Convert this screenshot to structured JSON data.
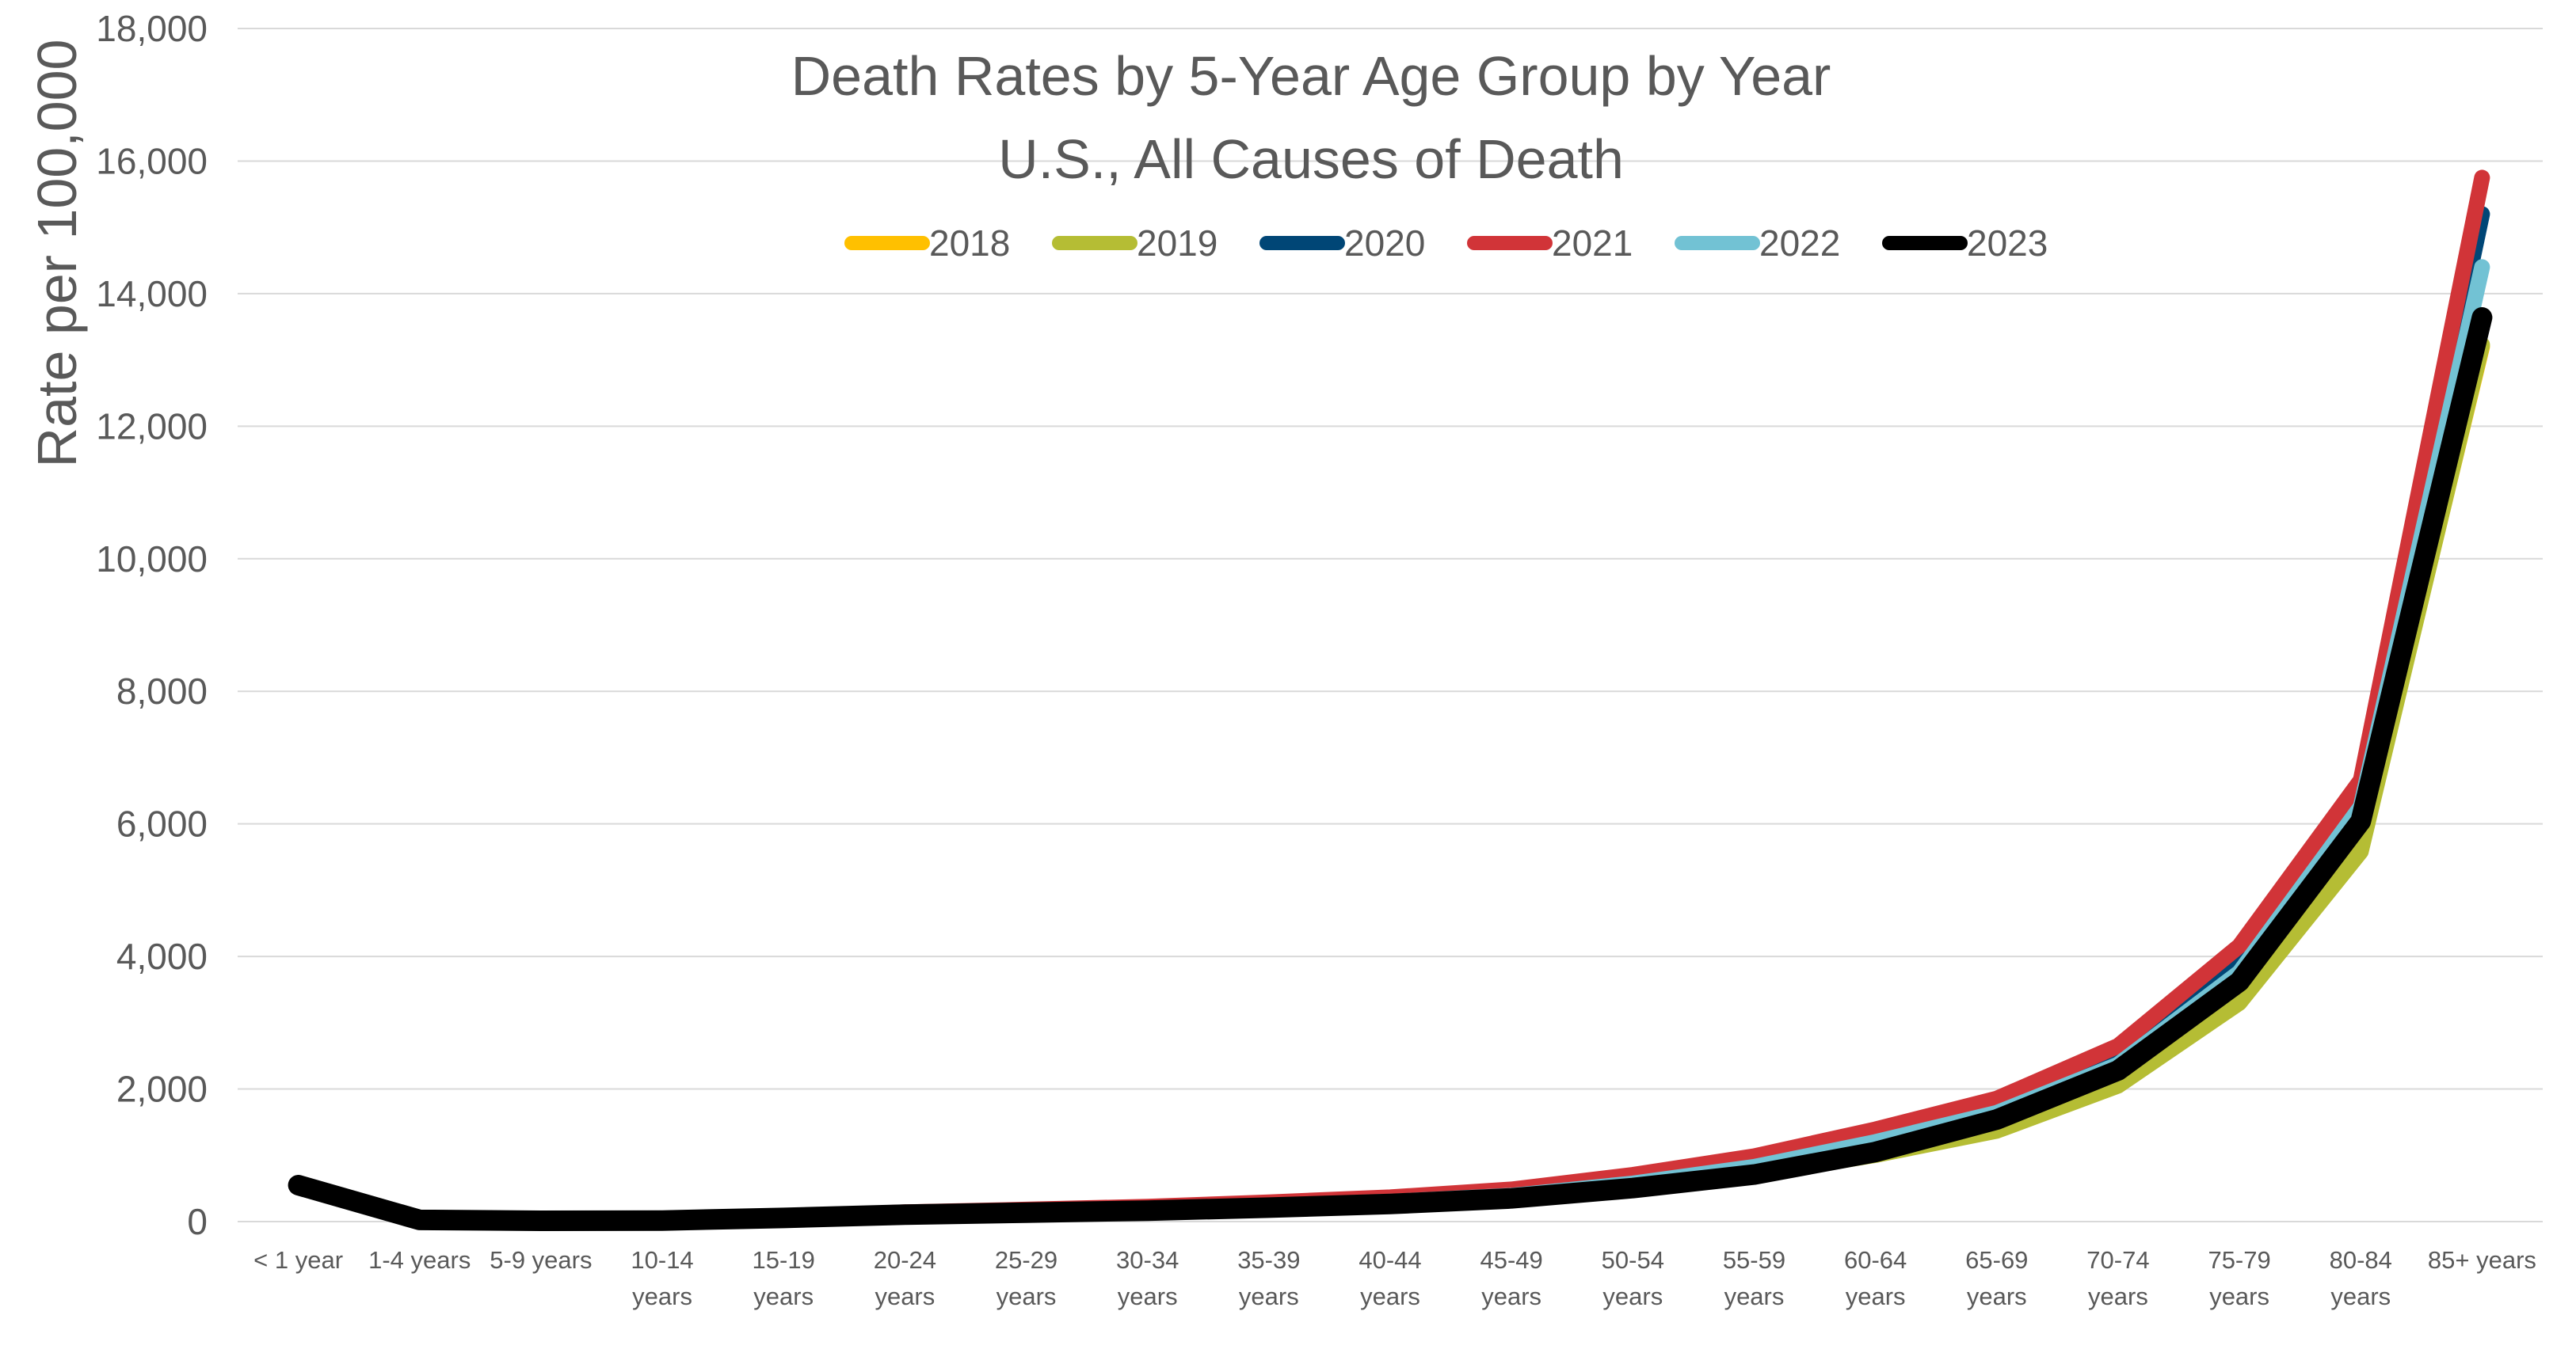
{
  "chart_data": {
    "type": "line",
    "title": "Death Rates by 5-Year Age Group by Year",
    "subtitle": "U.S., All Causes of Death",
    "xlabel": "",
    "ylabel": "Rate per 100,000",
    "ylim": [
      0,
      18000
    ],
    "y_ticks": [
      "0",
      "2,000",
      "4,000",
      "6,000",
      "8,000",
      "10,000",
      "12,000",
      "14,000",
      "16,000",
      "18,000"
    ],
    "grid": true,
    "legend_position": "top",
    "categories": [
      [
        "< 1 year"
      ],
      [
        "1-4 years"
      ],
      [
        "5-9 years"
      ],
      [
        "10-14",
        "years"
      ],
      [
        "15-19",
        "years"
      ],
      [
        "20-24",
        "years"
      ],
      [
        "25-29",
        "years"
      ],
      [
        "30-34",
        "years"
      ],
      [
        "35-39",
        "years"
      ],
      [
        "40-44",
        "years"
      ],
      [
        "45-49",
        "years"
      ],
      [
        "50-54",
        "years"
      ],
      [
        "55-59",
        "years"
      ],
      [
        "60-64",
        "years"
      ],
      [
        "65-69",
        "years"
      ],
      [
        "70-74",
        "years"
      ],
      [
        "75-79",
        "years"
      ],
      [
        "80-84",
        "years"
      ],
      [
        "85+ years"
      ]
    ],
    "series": [
      {
        "name": "2018",
        "color": "#FFC000",
        "values": [
          565,
          25,
          12,
          15,
          50,
          90,
          115,
          145,
          185,
          245,
          340,
          500,
          710,
          1010,
          1380,
          2060,
          3310,
          5630,
          13200
        ]
      },
      {
        "name": "2019",
        "color": "#B5BD34",
        "values": [
          555,
          24,
          12,
          15,
          50,
          90,
          115,
          145,
          185,
          245,
          335,
          495,
          705,
          1005,
          1370,
          2050,
          3300,
          5580,
          13230
        ]
      },
      {
        "name": "2020",
        "color": "#004676",
        "values": [
          540,
          24,
          12,
          16,
          60,
          125,
          160,
          200,
          250,
          325,
          440,
          640,
          905,
          1280,
          1700,
          2460,
          3880,
          6520,
          15200
        ]
      },
      {
        "name": "2021",
        "color": "#D13438",
        "values": [
          545,
          26,
          13,
          18,
          65,
          140,
          180,
          225,
          290,
          365,
          485,
          705,
          985,
          1390,
          1855,
          2650,
          4160,
          6660,
          15750
        ]
      },
      {
        "name": "2022",
        "color": "#72C2D4",
        "values": [
          560,
          28,
          14,
          18,
          62,
          120,
          155,
          190,
          240,
          300,
          390,
          575,
          825,
          1200,
          1640,
          2370,
          3760,
          6260,
          14400
        ]
      },
      {
        "name": "2023",
        "color": "#000000",
        "values": [
          550,
          25,
          12,
          16,
          55,
          105,
          135,
          165,
          210,
          265,
          350,
          505,
          710,
          1050,
          1540,
          2280,
          3620,
          6040,
          13640
        ]
      }
    ]
  }
}
